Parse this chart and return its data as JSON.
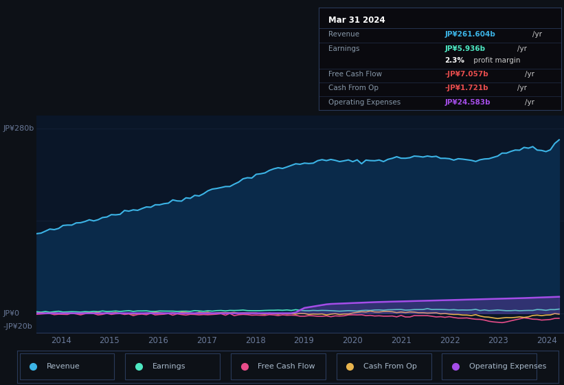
{
  "background_color": "#0d1117",
  "plot_bg_color": "#0a1628",
  "title": "Mar 31 2024",
  "ylabel_top": "JP¥280b",
  "ylabel_zero": "JP¥0",
  "ylabel_neg": "-JP¥20b",
  "x_labels": [
    "2014",
    "2015",
    "2016",
    "2017",
    "2018",
    "2019",
    "2020",
    "2021",
    "2022",
    "2023",
    "2024"
  ],
  "tooltip": {
    "date": "Mar 31 2024",
    "revenue_label": "Revenue",
    "revenue_colored": "JP¥261.604b",
    "revenue_rest": " /yr",
    "earnings_label": "Earnings",
    "earnings_colored": "JP¥5.936b",
    "earnings_rest": " /yr",
    "margin_bold": "2.3%",
    "margin_rest": " profit margin",
    "fcf_label": "Free Cash Flow",
    "fcf_colored": "-JP¥7.057b",
    "fcf_rest": " /yr",
    "cfop_label": "Cash From Op",
    "cfop_colored": "-JP¥1.721b",
    "cfop_rest": " /yr",
    "opex_label": "Operating Expenses",
    "opex_colored": "JP¥24.583b",
    "opex_rest": " /yr"
  },
  "legend": [
    {
      "label": "Revenue",
      "color": "#3cb4e6"
    },
    {
      "label": "Earnings",
      "color": "#4de8c2"
    },
    {
      "label": "Free Cash Flow",
      "color": "#e84d8a"
    },
    {
      "label": "Cash From Op",
      "color": "#e8b44d"
    },
    {
      "label": "Operating Expenses",
      "color": "#a44de8"
    }
  ],
  "revenue_color": "#3cb4e6",
  "earnings_color": "#4de8c2",
  "fcf_color": "#e84d8a",
  "cfop_color": "#e8b44d",
  "opex_color": "#a44de8",
  "revenue_fill_color": "#0a2a4a",
  "tooltip_revenue_color": "#3cb4e6",
  "tooltip_earnings_color": "#4de8c2",
  "tooltip_fcf_color": "#e84d4d",
  "tooltip_cfop_color": "#e84d4d",
  "tooltip_opex_color": "#a44de8",
  "ylim_min": -30,
  "ylim_max": 300
}
